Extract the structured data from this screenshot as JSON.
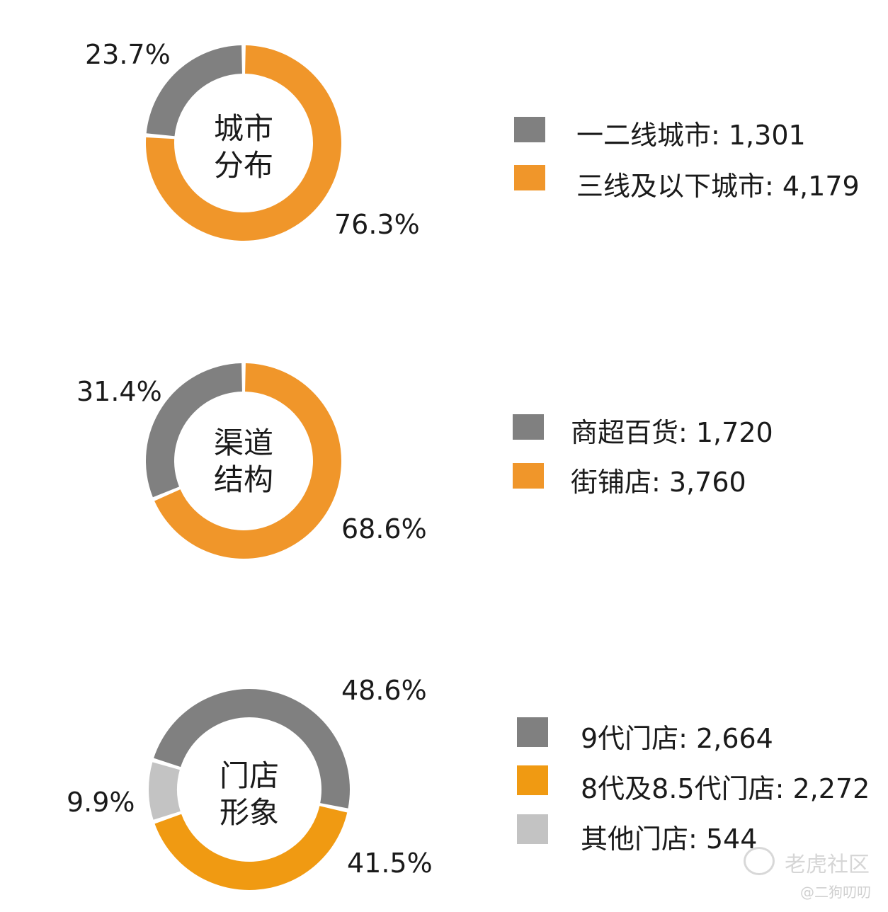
{
  "chart_data": [
    {
      "type": "pie",
      "center_label": [
        "城市",
        "分布"
      ],
      "categories": [
        "一二线城市",
        "三线及以下城市"
      ],
      "values": [
        1301,
        4179
      ],
      "percent_labels": [
        "23.7%",
        "76.3%"
      ],
      "legend_labels": [
        "一二线城市: 1,301",
        "三线及以下城市: 4,179"
      ],
      "colors": [
        "#808080",
        "#F0962A"
      ]
    },
    {
      "type": "pie",
      "center_label": [
        "渠道",
        "结构"
      ],
      "categories": [
        "商超百货",
        "街铺店"
      ],
      "values": [
        1720,
        3760
      ],
      "percent_labels": [
        "31.4%",
        "68.6%"
      ],
      "legend_labels": [
        "商超百货: 1,720",
        "街铺店: 3,760"
      ],
      "colors": [
        "#808080",
        "#F0962A"
      ]
    },
    {
      "type": "pie",
      "center_label": [
        "门店",
        "形象"
      ],
      "categories": [
        "9代门店",
        "8代及8.5代门店",
        "其他门店"
      ],
      "values": [
        2664,
        2272,
        544
      ],
      "percent_labels": [
        "48.6%",
        "41.5%",
        "9.9%"
      ],
      "legend_labels": [
        "9代门店: 2,664",
        "8代及8.5代门店: 2,272",
        "其他门店: 544"
      ],
      "colors": [
        "#808080",
        "#F09A12",
        "#C3C3C3"
      ]
    }
  ],
  "watermark": {
    "brand": "老虎社区",
    "user": "@二狗叨叨"
  }
}
